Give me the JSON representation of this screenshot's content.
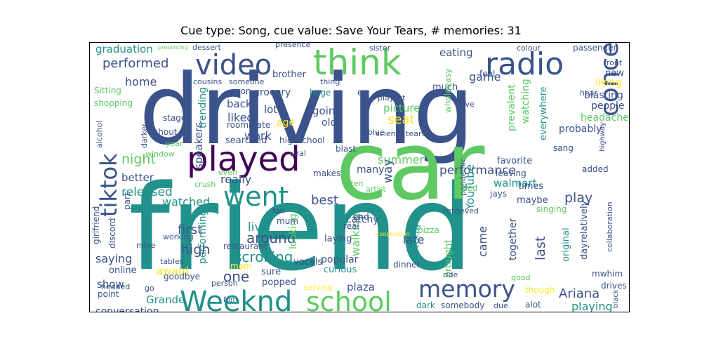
{
  "chart_data": {
    "type": "wordcloud",
    "title": "Cue type: Song, cue value: Save Your Tears, # memories: 31",
    "colormap": [
      "#440154",
      "#3b528b",
      "#21918c",
      "#5ec962",
      "#fde725"
    ],
    "words": [
      {
        "text": "friend",
        "color": "#21918c"
      },
      {
        "text": "driving",
        "color": "#3b528b"
      },
      {
        "text": "car",
        "color": "#5ec962"
      },
      {
        "text": "think",
        "color": "#5ec962"
      },
      {
        "text": "radio",
        "color": "#3b528b"
      },
      {
        "text": "video",
        "color": "#3b528b"
      },
      {
        "text": "played",
        "color": "#440154"
      },
      {
        "text": "went",
        "color": "#21918c"
      },
      {
        "text": "tiktok",
        "color": "#3b528b"
      },
      {
        "text": "concert",
        "color": "#3b528b"
      },
      {
        "text": "Weeknd",
        "color": "#21918c"
      },
      {
        "text": "school",
        "color": "#5ec962"
      },
      {
        "text": "memory",
        "color": "#3b528b"
      },
      {
        "text": "performance",
        "color": "#3b528b"
      },
      {
        "text": "graduation",
        "color": "#21918c"
      },
      {
        "text": "performed",
        "color": "#3b528b"
      },
      {
        "text": "home",
        "color": "#3b528b"
      },
      {
        "text": "Sitting",
        "color": "#5ec962"
      },
      {
        "text": "shopping",
        "color": "#5ec962"
      },
      {
        "text": "night",
        "color": "#5ec962"
      },
      {
        "text": "better",
        "color": "#3b528b"
      },
      {
        "text": "released",
        "color": "#21918c"
      },
      {
        "text": "watched",
        "color": "#21918c"
      },
      {
        "text": "first",
        "color": "#3b528b"
      },
      {
        "text": "high",
        "color": "#3b528b"
      },
      {
        "text": "saying",
        "color": "#3b528b"
      },
      {
        "text": "award",
        "color": "#fde725"
      },
      {
        "text": "show",
        "color": "#3b528b"
      },
      {
        "text": "Grande",
        "color": "#21918c"
      },
      {
        "text": "conversation",
        "color": "#3b528b"
      },
      {
        "text": "Ariana",
        "color": "#3b528b"
      },
      {
        "text": "playing",
        "color": "#21918c"
      },
      {
        "text": "play",
        "color": "#3b528b"
      },
      {
        "text": "last",
        "color": "#3b528b"
      },
      {
        "text": "game",
        "color": "#3b528b"
      },
      {
        "text": "eating",
        "color": "#3b528b"
      },
      {
        "text": "passenger",
        "color": "#3b528b"
      },
      {
        "text": "front",
        "color": "#3b528b"
      },
      {
        "text": "liking",
        "color": "#fde725"
      },
      {
        "text": "new",
        "color": "#3b528b"
      },
      {
        "text": "blasting",
        "color": "#3b528b"
      },
      {
        "text": "people",
        "color": "#3b528b"
      },
      {
        "text": "headache",
        "color": "#5ec962"
      },
      {
        "text": "probably",
        "color": "#3b528b"
      },
      {
        "text": "sang",
        "color": "#3b528b"
      },
      {
        "text": "added",
        "color": "#3b528b"
      },
      {
        "text": "back",
        "color": "#3b528b"
      },
      {
        "text": "liked",
        "color": "#3b528b"
      },
      {
        "text": "work",
        "color": "#3b528b"
      },
      {
        "text": "seat",
        "color": "#fde725"
      },
      {
        "text": "summer",
        "color": "#5ec962"
      },
      {
        "text": "way",
        "color": "#3b528b"
      },
      {
        "text": "really",
        "color": "#3b528b"
      },
      {
        "text": "best",
        "color": "#3b528b"
      },
      {
        "text": "live",
        "color": "#21918c"
      },
      {
        "text": "around",
        "color": "#3b528b"
      },
      {
        "text": "scrolling",
        "color": "#21918c"
      },
      {
        "text": "one",
        "color": "#3b528b"
      },
      {
        "text": "late",
        "color": "#3b528b"
      },
      {
        "text": "came",
        "color": "#3b528b"
      },
      {
        "text": "together",
        "color": "#3b528b"
      },
      {
        "text": "speakers",
        "color": "#3b528b"
      },
      {
        "text": "YouTube",
        "color": "#21918c"
      },
      {
        "text": "walking",
        "color": "#5ec962"
      },
      {
        "text": "getting",
        "color": "#21918c"
      },
      {
        "text": "picture",
        "color": "#5ec962"
      },
      {
        "text": "going",
        "color": "#3b528b"
      },
      {
        "text": "lot",
        "color": "#3b528b"
      },
      {
        "text": "age",
        "color": "#fde725"
      },
      {
        "text": "old",
        "color": "#3b528b"
      },
      {
        "text": "grocery",
        "color": "#3b528b"
      },
      {
        "text": "brother",
        "color": "#3b528b"
      },
      {
        "text": "feel",
        "color": "#3b528b"
      },
      {
        "text": "much",
        "color": "#3b528b"
      },
      {
        "text": "ex",
        "color": "#3b528b"
      },
      {
        "text": "huge",
        "color": "#21918c"
      },
      {
        "text": "thing",
        "color": "#3b528b"
      },
      {
        "text": "playlist",
        "color": "#3b528b"
      },
      {
        "text": "wholeeasy",
        "color": "#5ec962"
      },
      {
        "text": "prevalent",
        "color": "#5ec962"
      },
      {
        "text": "watching",
        "color": "#5ec962"
      },
      {
        "text": "everywhere",
        "color": "#21918c"
      },
      {
        "text": "favorite",
        "color": "#3b528b"
      },
      {
        "text": "walmart",
        "color": "#21918c"
      },
      {
        "text": "times",
        "color": "#3b528b"
      },
      {
        "text": "maybe",
        "color": "#3b528b"
      },
      {
        "text": "original",
        "color": "#21918c"
      },
      {
        "text": "dayrelatively",
        "color": "#3b528b"
      },
      {
        "text": "mwhim",
        "color": "#3b528b"
      },
      {
        "text": "drives",
        "color": "#3b528b"
      },
      {
        "text": "collaboration",
        "color": "#3b528b"
      },
      {
        "text": "singing",
        "color": "#5ec962"
      },
      {
        "text": "leaving",
        "color": "#3b528b"
      },
      {
        "text": "jays",
        "color": "#3b528b"
      },
      {
        "text": "bed",
        "color": "#5ec962"
      },
      {
        "text": "many",
        "color": "#3b528b"
      },
      {
        "text": "makes",
        "color": "#3b528b"
      },
      {
        "text": "often",
        "color": "#5ec962"
      },
      {
        "text": "artist",
        "color": "#5ec962"
      },
      {
        "text": "catchy",
        "color": "#3b528b"
      },
      {
        "text": "end",
        "color": "#3b528b"
      },
      {
        "text": "real",
        "color": "#3b528b"
      },
      {
        "text": "laying",
        "color": "#3b528b"
      },
      {
        "text": "popular",
        "color": "#3b528b"
      },
      {
        "text": "curious",
        "color": "#21918c"
      },
      {
        "text": "vocals",
        "color": "#3b528b"
      },
      {
        "text": "looking",
        "color": "#5ec962"
      },
      {
        "text": "mum",
        "color": "#3b528b"
      },
      {
        "text": "sure",
        "color": "#3b528b"
      },
      {
        "text": "popped",
        "color": "#3b528b"
      },
      {
        "text": "plaza",
        "color": "#3b528b"
      },
      {
        "text": "dark",
        "color": "#21918c"
      },
      {
        "text": "somebody",
        "color": "#3b528b"
      },
      {
        "text": "due",
        "color": "#3b528b"
      },
      {
        "text": "serving",
        "color": "#fde725"
      },
      {
        "text": "though",
        "color": "#fde725"
      },
      {
        "text": "alot",
        "color": "#3b528b"
      },
      {
        "text": "good",
        "color": "#5ec962"
      },
      {
        "text": "dinner",
        "color": "#3b528b"
      },
      {
        "text": "brought",
        "color": "#5ec962"
      },
      {
        "text": "ride",
        "color": "#3b528b"
      },
      {
        "text": "pizza",
        "color": "#5ec962"
      },
      {
        "text": "retrieved",
        "color": "#3b528b"
      },
      {
        "text": "restaurant",
        "color": "#3b528b"
      },
      {
        "text": "tables",
        "color": "#3b528b"
      },
      {
        "text": "mine",
        "color": "#3b528b"
      },
      {
        "text": "working",
        "color": "#3b528b"
      },
      {
        "text": "person",
        "color": "#3b528b"
      },
      {
        "text": "goodbye",
        "color": "#3b528b"
      },
      {
        "text": "online",
        "color": "#3b528b"
      },
      {
        "text": "point",
        "color": "#3b528b"
      },
      {
        "text": "headed",
        "color": "#3b528b"
      },
      {
        "text": "go",
        "color": "#3b528b"
      },
      {
        "text": "mom",
        "color": "#fde725"
      },
      {
        "text": "performing",
        "color": "#21918c"
      },
      {
        "text": "fan",
        "color": "#3b528b"
      },
      {
        "text": "crush",
        "color": "#5ec962"
      },
      {
        "text": "even",
        "color": "#5ec962"
      },
      {
        "text": "part",
        "color": "#3b528b"
      },
      {
        "text": "discord",
        "color": "#3b528b"
      },
      {
        "text": "girlfriend",
        "color": "#3b528b"
      },
      {
        "text": "alcohol",
        "color": "#3b528b"
      },
      {
        "text": "window",
        "color": "#5ec962"
      },
      {
        "text": "year",
        "color": "#5ec962"
      },
      {
        "text": "darker",
        "color": "#3b528b"
      },
      {
        "text": "shout",
        "color": "#3b528b"
      },
      {
        "text": "stage",
        "color": "#3b528b"
      },
      {
        "text": "trending",
        "color": "#21918c"
      },
      {
        "text": "soon",
        "color": "#3b528b"
      },
      {
        "text": "roommate",
        "color": "#3b528b"
      },
      {
        "text": "searched",
        "color": "#3b528b"
      },
      {
        "text": "highschool",
        "color": "#3b528b"
      },
      {
        "text": "viral",
        "color": "#3b528b"
      },
      {
        "text": "blast",
        "color": "#3b528b"
      },
      {
        "text": "science",
        "color": "#3b528b"
      },
      {
        "text": "tears",
        "color": "#3b528b"
      },
      {
        "text": "blue",
        "color": "#3b528b"
      },
      {
        "text": "save",
        "color": "#3b528b"
      },
      {
        "text": "hear",
        "color": "#3b528b"
      },
      {
        "text": "highway",
        "color": "#3b528b"
      },
      {
        "text": "pandemic",
        "color": "#3b528b"
      },
      {
        "text": "dessert",
        "color": "#3b528b"
      },
      {
        "text": "presence",
        "color": "#3b528b"
      },
      {
        "text": "sister",
        "color": "#3b528b"
      },
      {
        "text": "colour",
        "color": "#3b528b"
      },
      {
        "text": "cousins",
        "color": "#3b528b"
      },
      {
        "text": "someone",
        "color": "#3b528b"
      },
      {
        "text": "fun",
        "color": "#3b528b"
      },
      {
        "text": "presenting",
        "color": "#5ec962"
      },
      {
        "text": "p",
        "color": "#3b528b"
      },
      {
        "text": "project",
        "color": "#3b528b"
      },
      {
        "text": "black",
        "color": "#3b528b"
      },
      {
        "text": "cooperation",
        "color": "#fde725"
      }
    ]
  }
}
